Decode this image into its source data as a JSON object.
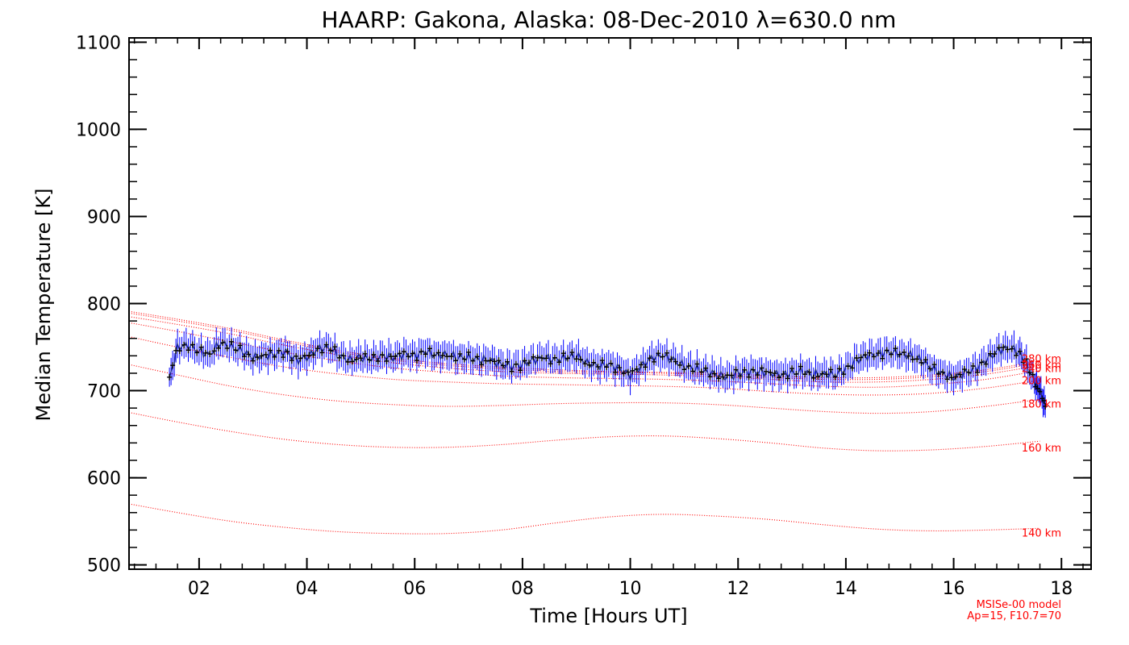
{
  "chart_data": {
    "type": "line",
    "title": "HAARP: Gakona,  Alaska: 08-Dec-2010 λ=630.0 nm",
    "xlabel": "Time [Hours UT]",
    "ylabel": "Median Temperature [K]",
    "xlim": [
      0.7,
      18.55
    ],
    "ylim": [
      495,
      1105
    ],
    "x_ticks": [
      2,
      4,
      6,
      8,
      10,
      12,
      14,
      16,
      18
    ],
    "x_tick_labels": [
      "02",
      "04",
      "06",
      "08",
      "10",
      "12",
      "14",
      "16",
      "18"
    ],
    "y_ticks": [
      500,
      600,
      700,
      800,
      900,
      1000,
      1100
    ],
    "y_tick_labels": [
      "500",
      "600",
      "700",
      "800",
      "900",
      "1000",
      "1100"
    ],
    "grid": false,
    "colors": {
      "measured": "#000000",
      "error_bars": "#0000ff",
      "model": "#ff0000"
    },
    "measured": {
      "x": [
        1.45,
        1.6,
        1.8,
        2.0,
        2.2,
        2.4,
        2.6,
        2.8,
        3.0,
        3.2,
        3.4,
        3.6,
        3.8,
        4.0,
        4.2,
        4.4,
        4.6,
        4.8,
        5.0,
        5.2,
        5.4,
        5.6,
        5.8,
        6.0,
        6.2,
        6.4,
        6.6,
        6.8,
        7.0,
        7.2,
        7.4,
        7.6,
        7.8,
        8.0,
        8.2,
        8.4,
        8.6,
        8.8,
        9.0,
        9.2,
        9.4,
        9.6,
        9.8,
        10.0,
        10.2,
        10.4,
        10.6,
        10.8,
        11.0,
        11.2,
        11.4,
        11.6,
        11.8,
        12.0,
        12.2,
        12.4,
        12.6,
        12.8,
        13.0,
        13.2,
        13.4,
        13.6,
        13.8,
        14.0,
        14.2,
        14.4,
        14.6,
        14.8,
        15.0,
        15.2,
        15.4,
        15.6,
        15.8,
        16.0,
        16.2,
        16.4,
        16.6,
        16.8,
        17.0,
        17.2,
        17.35,
        17.5,
        17.6,
        17.7
      ],
      "y": [
        713,
        750,
        752,
        745,
        742,
        755,
        750,
        745,
        738,
        740,
        742,
        745,
        735,
        738,
        748,
        750,
        740,
        735,
        738,
        736,
        740,
        738,
        742,
        740,
        745,
        740,
        742,
        738,
        738,
        735,
        735,
        730,
        728,
        730,
        735,
        738,
        735,
        738,
        740,
        732,
        728,
        730,
        725,
        718,
        728,
        738,
        740,
        735,
        728,
        725,
        722,
        718,
        715,
        720,
        722,
        722,
        720,
        718,
        720,
        722,
        718,
        720,
        718,
        725,
        735,
        740,
        742,
        745,
        742,
        740,
        735,
        725,
        720,
        715,
        720,
        725,
        735,
        745,
        750,
        745,
        730,
        710,
        700,
        682
      ]
    },
    "model": {
      "name": "MSISe-00 model",
      "params": "Ap=15, F10.7=70",
      "x": [
        0.7,
        1.6,
        2.6,
        3.6,
        4.6,
        5.6,
        6.6,
        7.6,
        8.6,
        9.6,
        10.6,
        11.6,
        12.6,
        13.6,
        14.6,
        15.6,
        16.6,
        17.6
      ],
      "series": [
        {
          "name": "140 km",
          "values": [
            570,
            560,
            550,
            543,
            538,
            536,
            536,
            540,
            548,
            555,
            558,
            556,
            552,
            546,
            541,
            539,
            540,
            542
          ]
        },
        {
          "name": "160 km",
          "values": [
            675,
            664,
            653,
            644,
            638,
            635,
            635,
            638,
            643,
            647,
            648,
            645,
            640,
            634,
            631,
            632,
            636,
            642
          ]
        },
        {
          "name": "180 km",
          "values": [
            730,
            718,
            705,
            695,
            688,
            684,
            682,
            683,
            685,
            686,
            686,
            684,
            680,
            676,
            674,
            676,
            682,
            690
          ]
        },
        {
          "name": "200 km",
          "values": [
            762,
            750,
            738,
            727,
            719,
            713,
            710,
            708,
            707,
            706,
            705,
            703,
            699,
            696,
            695,
            697,
            703,
            712
          ]
        },
        {
          "name": "220 km",
          "values": [
            778,
            768,
            756,
            744,
            734,
            726,
            721,
            717,
            715,
            714,
            713,
            711,
            708,
            705,
            704,
            707,
            713,
            723
          ]
        },
        {
          "name": "240 km",
          "values": [
            785,
            776,
            765,
            752,
            741,
            732,
            726,
            722,
            720,
            719,
            718,
            716,
            713,
            710,
            710,
            713,
            719,
            729
          ]
        },
        {
          "name": "260 km",
          "values": [
            789,
            780,
            769,
            756,
            744,
            735,
            729,
            725,
            722,
            721,
            720,
            718,
            715,
            713,
            713,
            716,
            722,
            732
          ]
        },
        {
          "name": "280 km",
          "values": [
            791,
            782,
            771,
            758,
            746,
            737,
            731,
            727,
            724,
            722,
            721,
            720,
            717,
            715,
            715,
            718,
            724,
            734
          ]
        }
      ]
    },
    "altitude_labels": [
      {
        "text": "280 km",
        "value": 737
      },
      {
        "text": "260 km",
        "value": 730
      },
      {
        "text": "240 km",
        "value": 726
      },
      {
        "text": "200 km",
        "value": 712
      },
      {
        "text": "180 km",
        "value": 685
      },
      {
        "text": "160 km",
        "value": 635
      },
      {
        "text": "140 km",
        "value": 537
      }
    ]
  }
}
